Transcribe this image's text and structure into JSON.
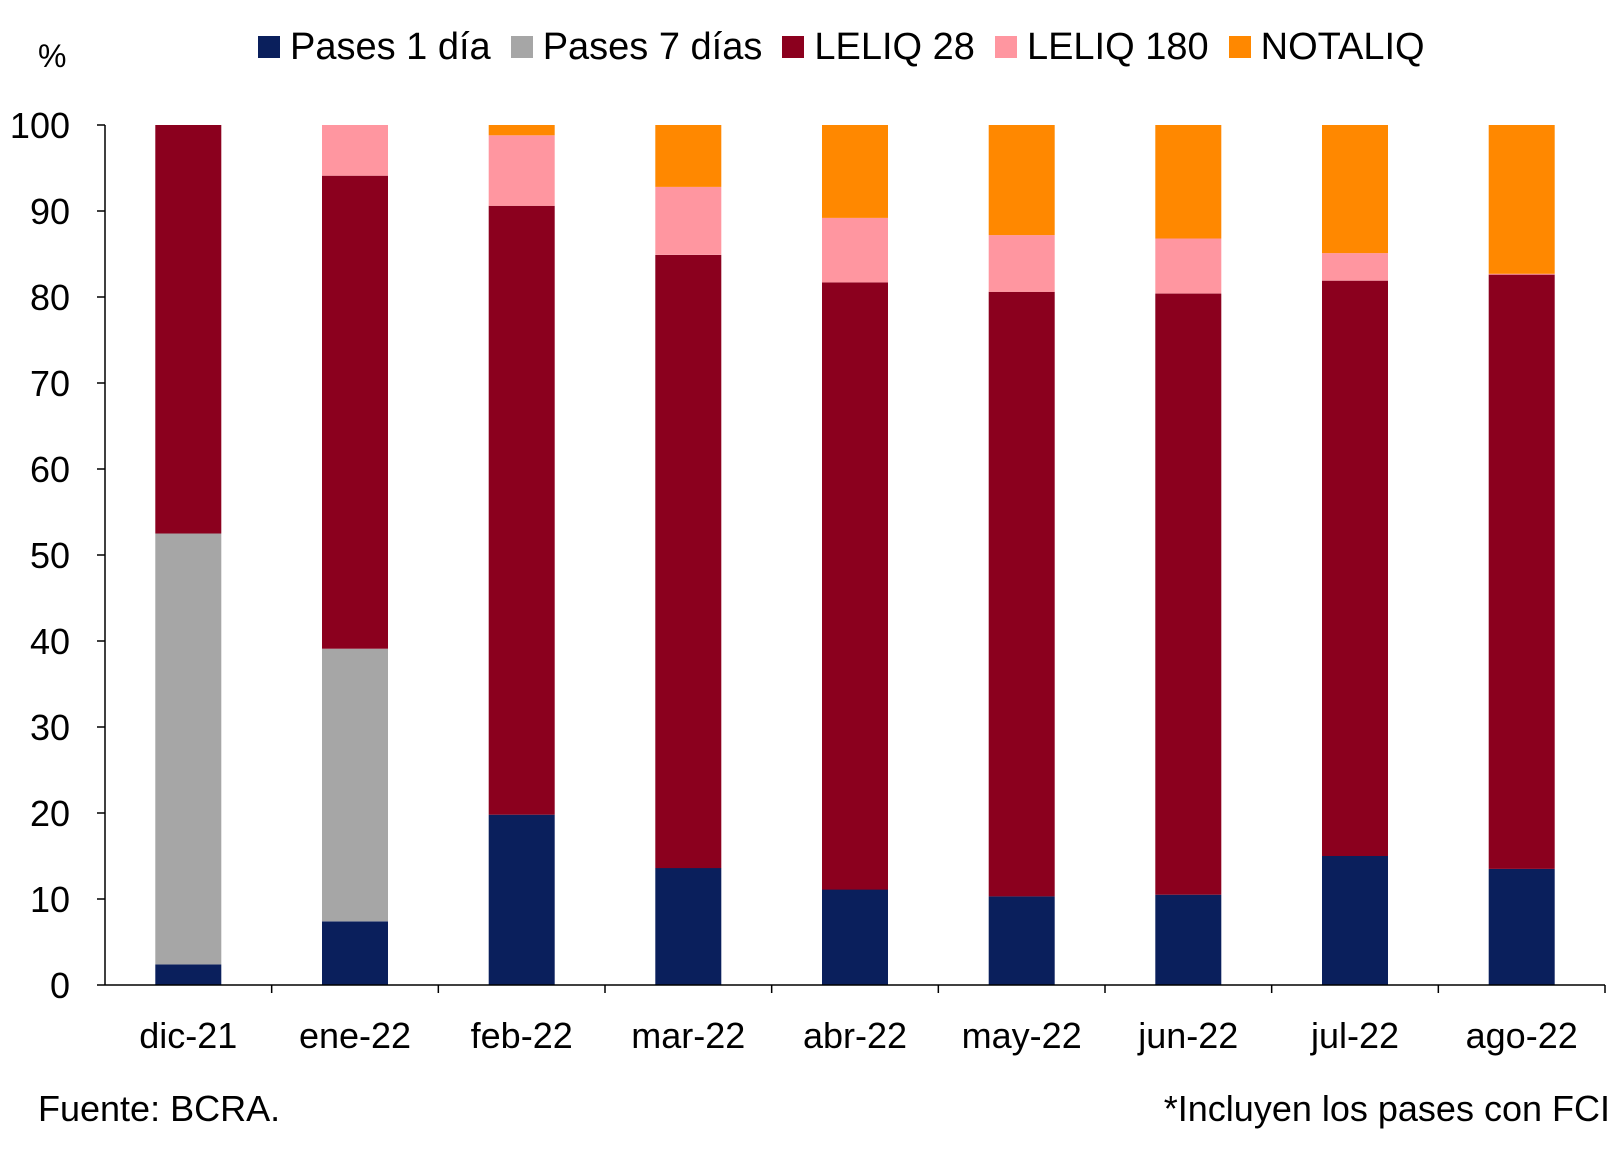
{
  "chart_data": {
    "type": "bar",
    "stacked": true,
    "unit_label": "%",
    "categories": [
      "dic-21",
      "ene-22",
      "feb-22",
      "mar-22",
      "abr-22",
      "may-22",
      "jun-22",
      "jul-22",
      "ago-22"
    ],
    "series": [
      {
        "name": "Pases 1 día",
        "color": "#0a1f5c",
        "values": [
          2.4,
          7.4,
          19.8,
          13.6,
          11.1,
          10.3,
          10.5,
          15.0,
          13.5
        ]
      },
      {
        "name": "Pases 7 días",
        "color": "#a6a6a6",
        "values": [
          50.1,
          31.7,
          0,
          0,
          0,
          0,
          0,
          0,
          0
        ]
      },
      {
        "name": "LELIQ 28",
        "color": "#8b001e",
        "values": [
          47.5,
          55.0,
          70.8,
          71.3,
          70.6,
          70.3,
          69.9,
          66.9,
          69.1
        ]
      },
      {
        "name": "LELIQ 180",
        "color": "#ff96a0",
        "values": [
          0,
          5.9,
          8.2,
          7.9,
          7.5,
          6.6,
          6.4,
          3.2,
          0.1
        ]
      },
      {
        "name": "NOTALIQ",
        "color": "#ff8800",
        "values": [
          0,
          0,
          1.2,
          7.2,
          10.8,
          12.8,
          13.2,
          14.9,
          17.3
        ]
      }
    ],
    "ylim": [
      0,
      100
    ],
    "yticks": [
      0,
      10,
      20,
      30,
      40,
      50,
      60,
      70,
      80,
      90,
      100
    ],
    "grid": false,
    "legend_position": "top",
    "source": "Fuente: BCRA.",
    "note": "*Incluyen los pases con FCI"
  }
}
